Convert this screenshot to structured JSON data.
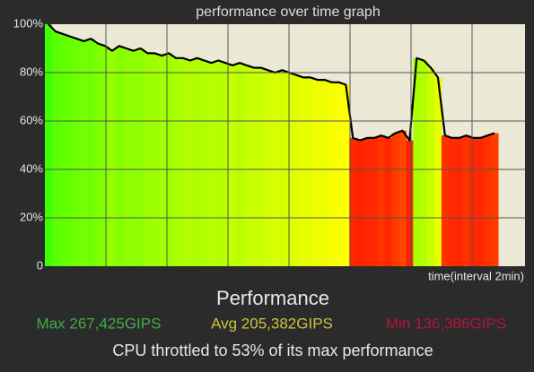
{
  "chart_data": {
    "type": "line",
    "title": "performance over time graph",
    "x_label": "time(interval 2min)",
    "values": [
      100,
      97,
      96,
      95,
      94,
      93,
      94,
      92,
      91,
      89,
      91,
      90,
      89,
      90,
      88,
      88,
      87,
      88,
      86,
      86,
      85,
      86,
      85,
      84,
      85,
      84,
      83,
      84,
      83,
      82,
      82,
      81,
      80,
      81,
      80,
      79,
      78,
      78,
      77,
      77,
      76,
      76,
      75,
      53,
      52,
      53,
      53,
      54,
      53,
      55,
      56,
      52,
      86,
      85,
      82,
      78,
      54,
      53,
      53,
      54,
      53,
      53,
      54,
      55
    ],
    "color": "#000000",
    "ylim": [
      0,
      100
    ],
    "yticks": [
      0,
      {
        "value": 20,
        "label": "20%"
      },
      {
        "value": 40,
        "label": "40%"
      },
      {
        "value": 60,
        "label": "60%"
      },
      {
        "value": 80,
        "label": "80%"
      },
      {
        "value": 100,
        "label": "100%"
      }
    ],
    "grid": true
  },
  "summary": {
    "heading": "Performance",
    "max": "Max 267,425GIPS",
    "avg": "Avg 205,382GIPS",
    "min": "Min 136,386GIPS",
    "message": "CPU throttled to 53% of its max performance"
  }
}
